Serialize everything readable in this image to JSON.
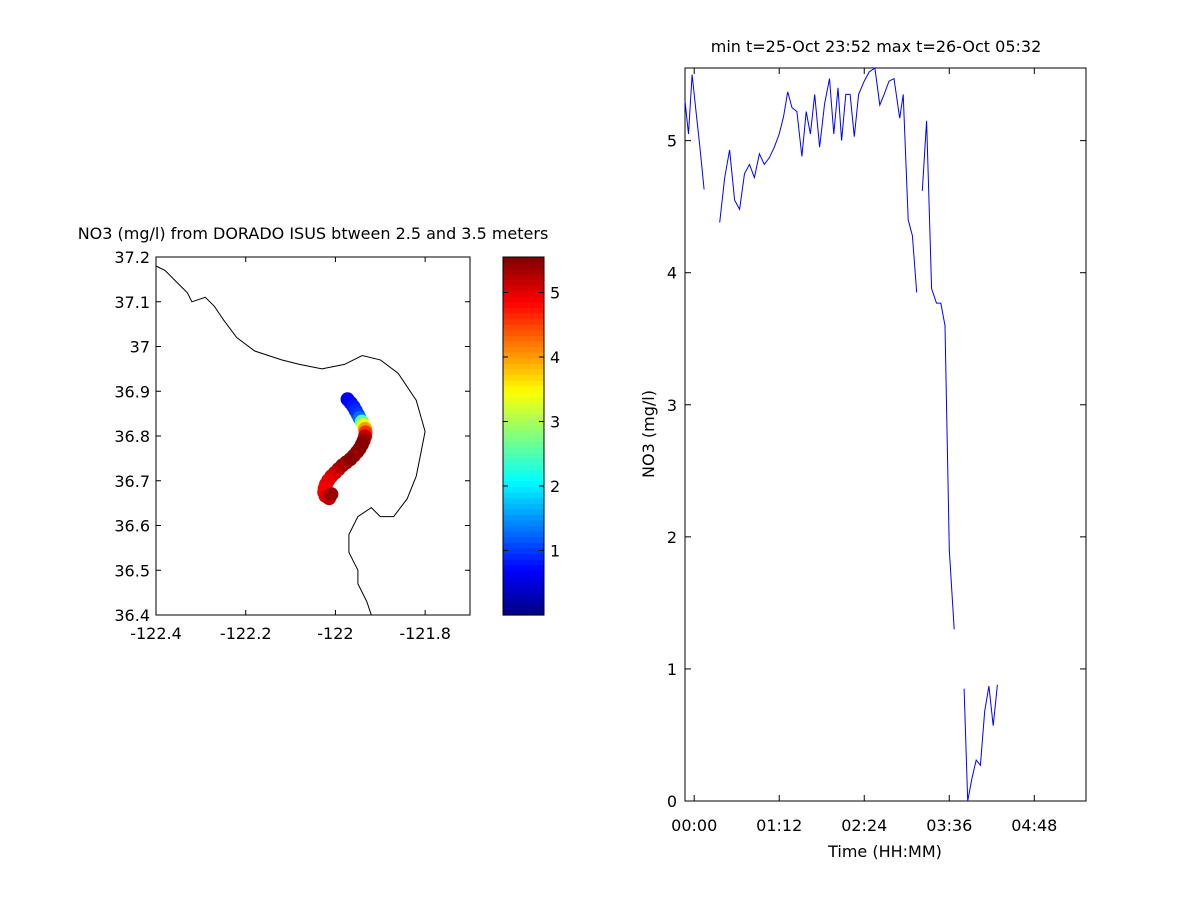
{
  "chart_data": [
    {
      "type": "scatter",
      "title": "NO3 (mg/l) from DORADO ISUS btween 2.5 and 3.5 meters",
      "xlim": [
        -122.4,
        -121.7
      ],
      "ylim": [
        36.4,
        37.2
      ],
      "xticks": [
        -122.4,
        -122.2,
        -122,
        -121.8
      ],
      "xtick_labels": [
        "-122.4",
        "-122.2",
        "-122",
        "-121.8"
      ],
      "yticks": [
        36.4,
        36.5,
        36.6,
        36.7,
        36.8,
        36.9,
        37.0,
        37.1,
        37.2
      ],
      "ytick_labels": [
        "36.4",
        "36.5",
        "36.6",
        "36.7",
        "36.8",
        "36.9",
        "37",
        "37.1",
        "37.2"
      ],
      "grid": false,
      "coastline": [
        [
          -122.4,
          37.18
        ],
        [
          -122.38,
          37.17
        ],
        [
          -122.35,
          37.14
        ],
        [
          -122.33,
          37.12
        ],
        [
          -122.32,
          37.1
        ],
        [
          -122.29,
          37.11
        ],
        [
          -122.27,
          37.09
        ],
        [
          -122.25,
          37.06
        ],
        [
          -122.22,
          37.02
        ],
        [
          -122.18,
          36.99
        ],
        [
          -122.12,
          36.97
        ],
        [
          -122.08,
          36.96
        ],
        [
          -122.03,
          36.95
        ],
        [
          -121.98,
          36.96
        ],
        [
          -121.94,
          36.98
        ],
        [
          -121.9,
          36.97
        ],
        [
          -121.86,
          36.94
        ],
        [
          -121.82,
          36.88
        ],
        [
          -121.8,
          36.81
        ],
        [
          -121.81,
          36.76
        ],
        [
          -121.82,
          36.71
        ],
        [
          -121.84,
          36.66
        ],
        [
          -121.87,
          36.62
        ],
        [
          -121.9,
          36.62
        ],
        [
          -121.92,
          36.64
        ],
        [
          -121.95,
          36.62
        ],
        [
          -121.97,
          36.58
        ],
        [
          -121.97,
          36.54
        ],
        [
          -121.95,
          36.5
        ],
        [
          -121.95,
          36.47
        ],
        [
          -121.93,
          36.43
        ],
        [
          -121.92,
          36.4
        ]
      ],
      "points": [
        {
          "lon": -121.973,
          "lat": 36.882,
          "no3": 0.6
        },
        {
          "lon": -121.966,
          "lat": 36.874,
          "no3": 0.7
        },
        {
          "lon": -121.96,
          "lat": 36.866,
          "no3": 0.8
        },
        {
          "lon": -121.955,
          "lat": 36.857,
          "no3": 0.9
        },
        {
          "lon": -121.95,
          "lat": 36.848,
          "no3": 1.0
        },
        {
          "lon": -121.946,
          "lat": 36.84,
          "no3": 1.3
        },
        {
          "lon": -121.941,
          "lat": 36.832,
          "no3": 2.6
        },
        {
          "lon": -121.937,
          "lat": 36.824,
          "no3": 3.4
        },
        {
          "lon": -121.934,
          "lat": 36.816,
          "no3": 4.0
        },
        {
          "lon": -121.933,
          "lat": 36.808,
          "no3": 4.6
        },
        {
          "lon": -121.934,
          "lat": 36.799,
          "no3": 5.2
        },
        {
          "lon": -121.937,
          "lat": 36.79,
          "no3": 5.4
        },
        {
          "lon": -121.941,
          "lat": 36.781,
          "no3": 5.5
        },
        {
          "lon": -121.946,
          "lat": 36.772,
          "no3": 5.5
        },
        {
          "lon": -121.952,
          "lat": 36.764,
          "no3": 5.5
        },
        {
          "lon": -121.959,
          "lat": 36.756,
          "no3": 5.4
        },
        {
          "lon": -121.967,
          "lat": 36.748,
          "no3": 5.5
        },
        {
          "lon": -121.976,
          "lat": 36.741,
          "no3": 5.5
        },
        {
          "lon": -121.985,
          "lat": 36.734,
          "no3": 5.4
        },
        {
          "lon": -121.993,
          "lat": 36.726,
          "no3": 5.3
        },
        {
          "lon": -122.001,
          "lat": 36.718,
          "no3": 5.2
        },
        {
          "lon": -122.009,
          "lat": 36.71,
          "no3": 5.1
        },
        {
          "lon": -122.016,
          "lat": 36.701,
          "no3": 5.0
        },
        {
          "lon": -122.021,
          "lat": 36.692,
          "no3": 5.0
        },
        {
          "lon": -122.024,
          "lat": 36.683,
          "no3": 4.9
        },
        {
          "lon": -122.025,
          "lat": 36.674,
          "no3": 4.9
        },
        {
          "lon": -122.022,
          "lat": 36.666,
          "no3": 5.0
        },
        {
          "lon": -122.014,
          "lat": 36.661,
          "no3": 5.2
        },
        {
          "lon": -122.009,
          "lat": 36.67,
          "no3": 5.4
        }
      ],
      "colorbar": {
        "colormap": "jet",
        "clim": [
          0,
          5.55
        ],
        "ticks": [
          1,
          2,
          3,
          4,
          5
        ],
        "tick_labels": [
          "1",
          "2",
          "3",
          "4",
          "5"
        ]
      }
    },
    {
      "type": "line",
      "title": "min t=25-Oct 23:52 max t=26-Oct 05:32",
      "xlabel": "Time (HH:MM)",
      "ylabel": "NO3 (mg/l)",
      "x_units": "hours since 00:00",
      "xlim": [
        -0.13,
        5.53
      ],
      "ylim": [
        0,
        5.55
      ],
      "xticks": [
        0,
        1.2,
        2.4,
        3.6,
        4.8
      ],
      "xtick_labels": [
        "00:00",
        "01:12",
        "02:24",
        "03:36",
        "04:48"
      ],
      "yticks": [
        0,
        1,
        2,
        3,
        4,
        5
      ],
      "ytick_labels": [
        "0",
        "1",
        "2",
        "3",
        "4",
        "5"
      ],
      "grid": false,
      "line_color": "#0000ff",
      "segments": [
        [
          [
            -0.13,
            5.3
          ],
          [
            -0.08,
            5.05
          ],
          [
            -0.03,
            5.5
          ],
          [
            0.02,
            5.25
          ],
          [
            0.08,
            4.95
          ],
          [
            0.14,
            4.63
          ]
        ],
        [
          [
            0.36,
            4.38
          ],
          [
            0.43,
            4.72
          ],
          [
            0.5,
            4.93
          ],
          [
            0.57,
            4.55
          ],
          [
            0.64,
            4.48
          ],
          [
            0.71,
            4.75
          ],
          [
            0.78,
            4.82
          ],
          [
            0.85,
            4.72
          ],
          [
            0.92,
            4.9
          ],
          [
            0.99,
            4.82
          ],
          [
            1.06,
            4.87
          ],
          [
            1.13,
            4.95
          ],
          [
            1.2,
            5.05
          ],
          [
            1.26,
            5.18
          ],
          [
            1.32,
            5.37
          ],
          [
            1.38,
            5.25
          ],
          [
            1.45,
            5.22
          ],
          [
            1.52,
            4.88
          ],
          [
            1.58,
            5.22
          ],
          [
            1.64,
            5.05
          ],
          [
            1.7,
            5.35
          ],
          [
            1.77,
            4.95
          ],
          [
            1.84,
            5.28
          ],
          [
            1.91,
            5.47
          ],
          [
            1.97,
            5.05
          ],
          [
            2.03,
            5.4
          ],
          [
            2.08,
            5.0
          ],
          [
            2.14,
            5.35
          ],
          [
            2.2,
            5.35
          ],
          [
            2.26,
            5.03
          ],
          [
            2.32,
            5.35
          ],
          [
            2.4,
            5.45
          ],
          [
            2.47,
            5.52
          ],
          [
            2.55,
            5.55
          ],
          [
            2.62,
            5.27
          ],
          [
            2.68,
            5.35
          ],
          [
            2.75,
            5.45
          ],
          [
            2.82,
            5.47
          ],
          [
            2.9,
            5.17
          ],
          [
            2.95,
            5.35
          ],
          [
            3.02,
            4.4
          ],
          [
            3.08,
            4.28
          ],
          [
            3.14,
            3.85
          ]
        ],
        [
          [
            3.22,
            4.62
          ],
          [
            3.28,
            5.15
          ],
          [
            3.35,
            3.88
          ],
          [
            3.42,
            3.77
          ],
          [
            3.48,
            3.77
          ],
          [
            3.54,
            3.6
          ],
          [
            3.6,
            1.9
          ],
          [
            3.67,
            1.3
          ]
        ],
        [
          [
            3.81,
            0.85
          ],
          [
            3.86,
            0.0
          ],
          [
            3.92,
            0.17
          ],
          [
            3.98,
            0.31
          ],
          [
            4.04,
            0.27
          ],
          [
            4.1,
            0.68
          ],
          [
            4.16,
            0.87
          ],
          [
            4.22,
            0.57
          ],
          [
            4.28,
            0.88
          ]
        ]
      ]
    }
  ]
}
